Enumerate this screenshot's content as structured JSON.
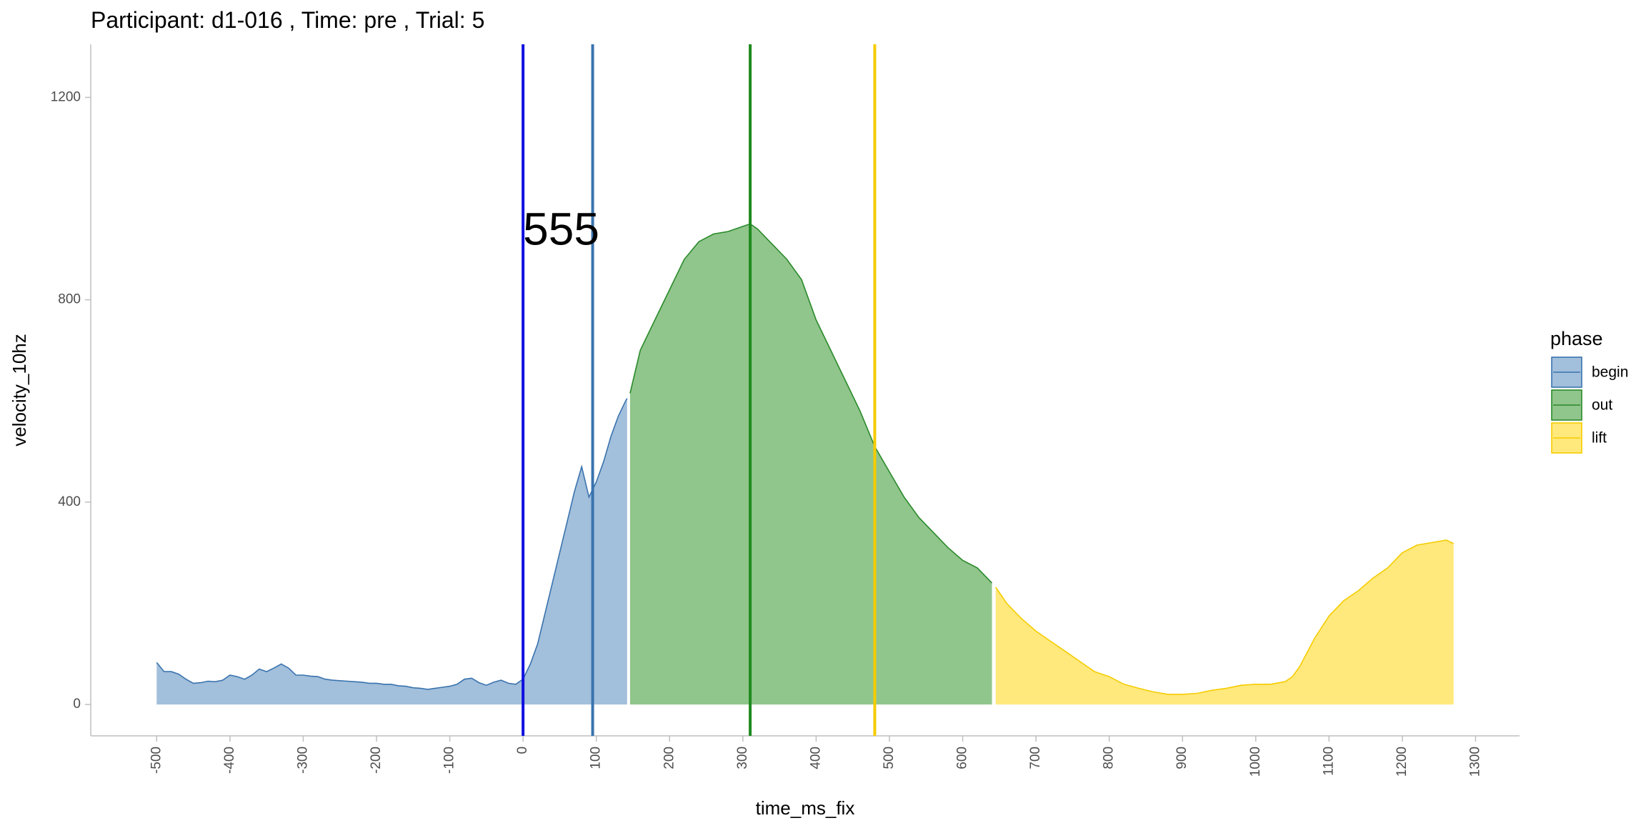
{
  "chart_data": {
    "type": "area",
    "title": "Participant:  d1-016 , Time: pre , Trial:  5",
    "xlabel": "time_ms_fix",
    "ylabel": "velocity_10hz",
    "xlim": [
      -590,
      1360
    ],
    "ylim": [
      -62,
      1305
    ],
    "x_ticks": [
      -500,
      -400,
      -300,
      -200,
      -100,
      0,
      100,
      200,
      300,
      400,
      500,
      600,
      700,
      800,
      900,
      1000,
      1100,
      1200,
      1300
    ],
    "x_tick_labels": [
      "-500",
      "-400",
      "-300",
      "-200",
      "-100",
      "0",
      "100",
      "200",
      "300",
      "400",
      "500",
      "600",
      "700",
      "800",
      "900",
      "1000",
      "1100",
      "1200",
      "1300"
    ],
    "y_ticks": [
      0,
      400,
      800,
      1200
    ],
    "y_tick_labels": [
      "0",
      "400",
      "800",
      "1200"
    ],
    "grid": false,
    "legend": {
      "title": "phase",
      "position": "right",
      "entries": [
        {
          "label": "begin",
          "fill": "#a2bfdb",
          "line": "#3a73ae"
        },
        {
          "label": "out",
          "fill": "#90c58c",
          "line": "#2a8a2a"
        },
        {
          "label": "lift",
          "fill": "#ffe97d",
          "line": "#f5cc00"
        }
      ]
    },
    "series": [
      {
        "name": "begin",
        "fill": "#a2bfdb",
        "line": "#3a73ae",
        "x": [
          -500,
          -490,
          -480,
          -470,
          -460,
          -450,
          -440,
          -430,
          -420,
          -410,
          -400,
          -390,
          -380,
          -370,
          -360,
          -350,
          -340,
          -330,
          -320,
          -310,
          -300,
          -290,
          -280,
          -270,
          -260,
          -250,
          -240,
          -230,
          -220,
          -210,
          -200,
          -190,
          -180,
          -170,
          -160,
          -150,
          -140,
          -130,
          -120,
          -110,
          -100,
          -90,
          -80,
          -70,
          -60,
          -50,
          -40,
          -30,
          -20,
          -10,
          0,
          10,
          20,
          30,
          40,
          50,
          60,
          70,
          80,
          90,
          100,
          110,
          120,
          130,
          140,
          142
        ],
        "y": [
          83,
          65,
          65,
          60,
          50,
          42,
          43,
          46,
          45,
          48,
          58,
          55,
          50,
          58,
          70,
          65,
          72,
          80,
          72,
          58,
          58,
          56,
          55,
          50,
          48,
          47,
          46,
          45,
          44,
          42,
          42,
          40,
          40,
          37,
          36,
          33,
          32,
          30,
          32,
          34,
          36,
          40,
          50,
          52,
          43,
          38,
          44,
          48,
          42,
          40,
          50,
          80,
          120,
          180,
          240,
          300,
          360,
          420,
          470,
          410,
          440,
          480,
          530,
          570,
          600,
          605
        ]
      },
      {
        "name": "out",
        "fill": "#90c58c",
        "line": "#2a8a2a",
        "x": [
          146,
          160,
          180,
          200,
          220,
          240,
          260,
          280,
          300,
          310,
          320,
          340,
          360,
          380,
          400,
          420,
          440,
          460,
          480,
          500,
          520,
          540,
          560,
          580,
          600,
          620,
          640
        ],
        "y": [
          615,
          700,
          760,
          820,
          880,
          915,
          930,
          935,
          945,
          950,
          940,
          910,
          880,
          840,
          760,
          700,
          640,
          580,
          510,
          460,
          410,
          370,
          340,
          310,
          285,
          270,
          240
        ]
      },
      {
        "name": "lift",
        "fill": "#ffe97d",
        "line": "#f5cc00",
        "x": [
          645,
          660,
          680,
          700,
          720,
          740,
          760,
          780,
          800,
          820,
          840,
          860,
          880,
          900,
          920,
          940,
          960,
          980,
          1000,
          1020,
          1040,
          1050,
          1060,
          1080,
          1100,
          1120,
          1140,
          1160,
          1180,
          1200,
          1220,
          1240,
          1260,
          1270
        ],
        "y": [
          232,
          200,
          170,
          145,
          125,
          105,
          85,
          65,
          55,
          40,
          32,
          25,
          20,
          20,
          22,
          28,
          32,
          38,
          40,
          40,
          45,
          55,
          75,
          130,
          175,
          205,
          225,
          250,
          270,
          300,
          315,
          320,
          325,
          318
        ]
      }
    ],
    "vlines": [
      {
        "x": 0,
        "color": "#1010e0"
      },
      {
        "x": 95,
        "color": "#3a73ae"
      },
      {
        "x": 310,
        "color": "#1f8a1f"
      },
      {
        "x": 480,
        "color": "#f5cc00"
      }
    ],
    "annotations": [
      {
        "text": "555",
        "x": 0,
        "y": 940
      }
    ]
  }
}
